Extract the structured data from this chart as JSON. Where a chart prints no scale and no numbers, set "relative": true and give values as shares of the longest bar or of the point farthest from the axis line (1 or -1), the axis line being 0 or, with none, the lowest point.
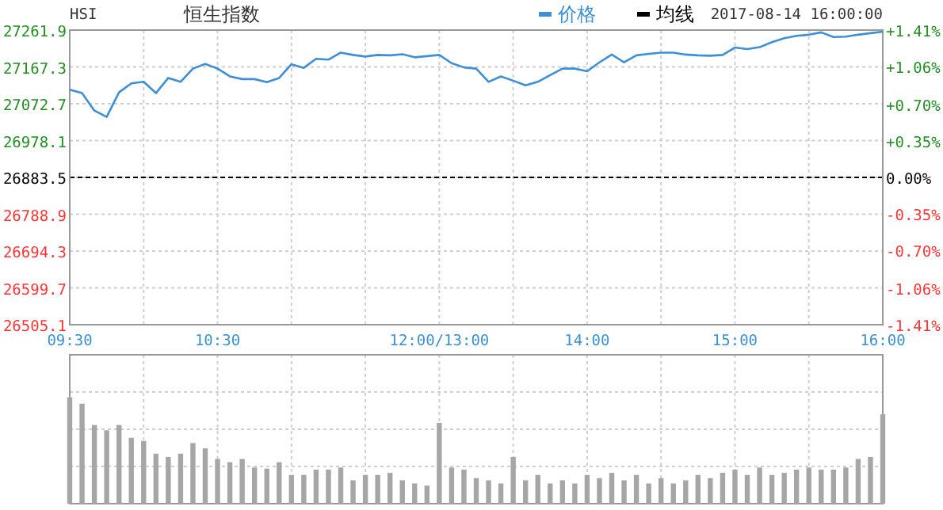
{
  "chart_data": [
    {
      "type": "line",
      "title": "恒生指数",
      "subtitle": "HSI",
      "annotations": [
        "2017-08-14 16:00:00"
      ],
      "legend": "top",
      "grid": true,
      "categories": [
        "09:30",
        null,
        null,
        null,
        null,
        null,
        null,
        null,
        null,
        null,
        null,
        null,
        "10:30",
        null,
        null,
        null,
        null,
        null,
        null,
        null,
        null,
        null,
        null,
        null,
        null,
        null,
        null,
        null,
        null,
        null,
        "12:00/13:00",
        null,
        null,
        null,
        null,
        null,
        null,
        null,
        null,
        null,
        null,
        null,
        "14:00",
        null,
        null,
        null,
        null,
        null,
        null,
        null,
        null,
        null,
        null,
        null,
        "15:00",
        null,
        null,
        null,
        null,
        null,
        null,
        null,
        null,
        null,
        null,
        null,
        "16:00"
      ],
      "ylim": [
        26505.1,
        27261.9
      ],
      "yticks": [
        26505.1,
        26599.7,
        26694.3,
        26788.9,
        26883.5,
        26978.1,
        27072.7,
        27167.3,
        27261.9
      ],
      "y2lim": [
        -1.41,
        1.41
      ],
      "y2ticks": [
        {
          "value": -1.41,
          "label": "-1.41%"
        },
        {
          "value": -1.06,
          "label": "-1.06%"
        },
        {
          "value": -0.7,
          "label": "-0.70%"
        },
        {
          "value": -0.35,
          "label": "-0.35%"
        },
        {
          "value": 0,
          "label": "0.00%"
        },
        {
          "value": 0.35,
          "label": "+0.35%"
        },
        {
          "value": 0.7,
          "label": "+0.70%"
        },
        {
          "value": 1.06,
          "label": "+1.06%"
        },
        {
          "value": 1.41,
          "label": "+1.41%"
        }
      ],
      "ref_lines": [
        {
          "axis": "y",
          "value": 26883.5,
          "color": "#000000",
          "line_style": "dashed"
        }
      ],
      "series": [
        {
          "name": "价格",
          "color": "#3d8fd6",
          "values": [
            27109,
            27100,
            27055,
            27039,
            27102,
            27125,
            27129,
            27100,
            27139,
            27129,
            27163,
            27175,
            27163,
            27143,
            27136,
            27136,
            27128,
            27139,
            27174,
            27165,
            27188,
            27186,
            27204,
            27198,
            27194,
            27198,
            27197,
            27200,
            27192,
            27195,
            27198,
            27177,
            27166,
            27163,
            27129,
            27143,
            27132,
            27120,
            27129,
            27146,
            27163,
            27163,
            27156,
            27179,
            27199,
            27179,
            27197,
            27201,
            27204,
            27204,
            27199,
            27197,
            27196,
            27198,
            27217,
            27213,
            27218,
            27231,
            27241,
            27247,
            27250,
            27256,
            27244,
            27245,
            27250,
            27254,
            27258
          ]
        },
        {
          "name": "均线",
          "color": "#000000",
          "values": [
            null,
            null,
            null,
            null,
            null,
            null,
            null,
            null,
            null,
            null,
            null,
            null,
            null,
            null,
            null,
            null,
            null,
            null,
            null,
            null,
            null,
            null,
            null,
            null,
            null,
            null,
            null,
            null,
            null,
            null,
            null,
            null,
            null,
            null,
            null,
            null,
            null,
            null,
            null,
            null,
            null,
            null,
            null,
            null,
            null,
            null,
            null,
            null,
            null,
            null,
            null,
            null,
            null,
            null,
            null,
            null,
            null,
            null,
            null,
            null,
            null,
            null,
            null,
            null,
            null,
            null,
            null
          ]
        }
      ]
    },
    {
      "type": "bar",
      "relative": true,
      "grid": true,
      "tick_labels": false,
      "color": "#a6a6a6",
      "categories": [
        null,
        null,
        null,
        null,
        null,
        null,
        null,
        null,
        null,
        null,
        null,
        null,
        null,
        null,
        null,
        null,
        null,
        null,
        null,
        null,
        null,
        null,
        null,
        null,
        null,
        null,
        null,
        null,
        null,
        null,
        null,
        null,
        null,
        null,
        null,
        null,
        null,
        null,
        null,
        null,
        null,
        null,
        null,
        null,
        null,
        null,
        null,
        null,
        null,
        null,
        null,
        null,
        null,
        null,
        null,
        null,
        null,
        null,
        null,
        null,
        null,
        null,
        null,
        null,
        null,
        null,
        null
      ],
      "values": [
        1.0,
        0.94,
        0.74,
        0.69,
        0.74,
        0.62,
        0.59,
        0.47,
        0.44,
        0.47,
        0.57,
        0.52,
        0.42,
        0.39,
        0.42,
        0.34,
        0.33,
        0.39,
        0.27,
        0.27,
        0.32,
        0.32,
        0.34,
        0.22,
        0.27,
        0.27,
        0.29,
        0.22,
        0.19,
        0.17,
        0.76,
        0.34,
        0.32,
        0.24,
        0.22,
        0.19,
        0.44,
        0.22,
        0.27,
        0.19,
        0.22,
        0.19,
        0.27,
        0.24,
        0.29,
        0.22,
        0.27,
        0.19,
        0.24,
        0.19,
        0.22,
        0.27,
        0.24,
        0.29,
        0.32,
        0.27,
        0.34,
        0.27,
        0.29,
        0.32,
        0.34,
        0.32,
        0.32,
        0.34,
        0.42,
        0.44,
        0.84
      ]
    }
  ]
}
